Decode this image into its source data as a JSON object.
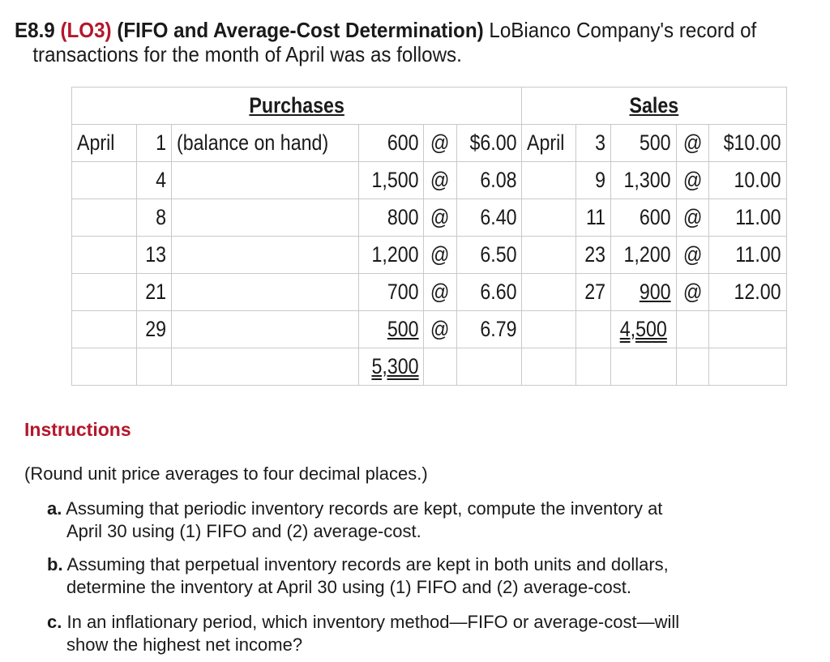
{
  "title": {
    "code": "E8.9",
    "lo": "(LO3)",
    "heading": "(FIFO and Average-Cost Determination)",
    "text1": "LoBianco Company's record of",
    "text2": "transactions for the month of April was as follows."
  },
  "table": {
    "purchases_header": "Purchases",
    "sales_header": "Sales",
    "purchases": [
      {
        "month": "April",
        "day": "1",
        "note": "(balance on hand)",
        "units": "600",
        "at": "@",
        "price": "$6.00"
      },
      {
        "month": "",
        "day": "4",
        "note": "",
        "units": "1,500",
        "at": "@",
        "price": "6.08"
      },
      {
        "month": "",
        "day": "8",
        "note": "",
        "units": "800",
        "at": "@",
        "price": "6.40"
      },
      {
        "month": "",
        "day": "13",
        "note": "",
        "units": "1,200",
        "at": "@",
        "price": "6.50"
      },
      {
        "month": "",
        "day": "21",
        "note": "",
        "units": "700",
        "at": "@",
        "price": "6.60"
      },
      {
        "month": "",
        "day": "29",
        "note": "",
        "units": "500",
        "at": "@",
        "price": "6.79"
      }
    ],
    "purchases_total": "5,300",
    "sales": [
      {
        "month": "April",
        "day": "3",
        "units": "500",
        "at": "@",
        "price": "$10.00"
      },
      {
        "month": "",
        "day": "9",
        "units": "1,300",
        "at": "@",
        "price": "10.00"
      },
      {
        "month": "",
        "day": "11",
        "units": "600",
        "at": "@",
        "price": "11.00"
      },
      {
        "month": "",
        "day": "23",
        "units": "1,200",
        "at": "@",
        "price": "11.00"
      },
      {
        "month": "",
        "day": "27",
        "units": "900",
        "at": "@",
        "price": "12.00"
      }
    ],
    "sales_total": "4,500"
  },
  "instructions": {
    "heading": "Instructions",
    "note": "(Round unit price averages to four decimal places.)",
    "items": [
      {
        "letter": "a.",
        "line1": "Assuming that periodic inventory records are kept, compute the inventory at",
        "line2": "April 30 using (1) FIFO and (2) average-cost."
      },
      {
        "letter": "b.",
        "line1": "Assuming that perpetual inventory records are kept in both units and dollars,",
        "line2": "determine the inventory at April 30 using (1) FIFO and (2) average-cost."
      },
      {
        "letter": "c.",
        "line1": "In an inflationary period, which inventory method—FIFO or average-cost—will",
        "line2": "show the highest net income?"
      }
    ]
  }
}
